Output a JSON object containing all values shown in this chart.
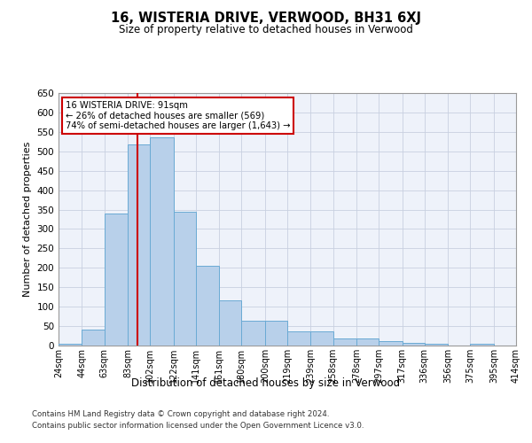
{
  "title": "16, WISTERIA DRIVE, VERWOOD, BH31 6XJ",
  "subtitle": "Size of property relative to detached houses in Verwood",
  "xlabel": "Distribution of detached houses by size in Verwood",
  "ylabel": "Number of detached properties",
  "footnote1": "Contains HM Land Registry data © Crown copyright and database right 2024.",
  "footnote2": "Contains public sector information licensed under the Open Government Licence v3.0.",
  "annotation_line1": "16 WISTERIA DRIVE: 91sqm",
  "annotation_line2": "← 26% of detached houses are smaller (569)",
  "annotation_line3": "74% of semi-detached houses are larger (1,643) →",
  "property_sqm": 91,
  "bin_edges": [
    24,
    44,
    63,
    83,
    102,
    122,
    141,
    161,
    180,
    200,
    219,
    239,
    258,
    278,
    297,
    317,
    336,
    356,
    375,
    395,
    414
  ],
  "bar_heights": [
    5,
    42,
    340,
    517,
    535,
    345,
    205,
    117,
    65,
    65,
    37,
    37,
    18,
    18,
    11,
    7,
    4,
    0,
    5,
    0,
    5
  ],
  "bar_color": "#b8d0ea",
  "bar_edge_color": "#6aaad4",
  "vline_x": 91,
  "vline_color": "#cc0000",
  "annotation_box_color": "#cc0000",
  "background_color": "#eef2fa",
  "grid_color": "#c8d0e0",
  "ylim": [
    0,
    650
  ],
  "yticks": [
    0,
    50,
    100,
    150,
    200,
    250,
    300,
    350,
    400,
    450,
    500,
    550,
    600,
    650
  ]
}
